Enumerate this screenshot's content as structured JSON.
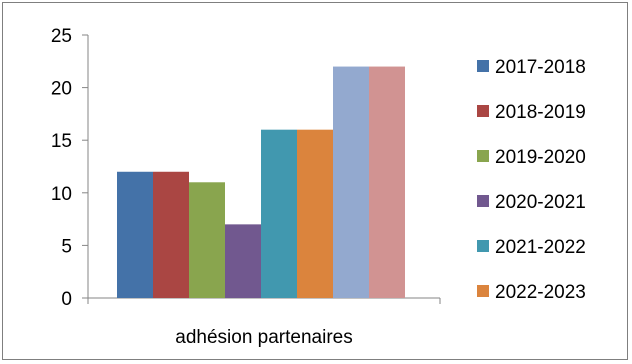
{
  "chart_data": {
    "type": "bar",
    "title": "",
    "xlabel": "",
    "ylabel": "",
    "categories": [
      "adhésion partenaires"
    ],
    "ylim": [
      0,
      25
    ],
    "yticks": [
      0,
      5,
      10,
      15,
      20,
      25
    ],
    "grid": false,
    "legend_position": "right",
    "series": [
      {
        "name": "2017-2018",
        "values": [
          12
        ],
        "color": "#4472a8"
      },
      {
        "name": "2018-2019",
        "values": [
          12
        ],
        "color": "#aa4643"
      },
      {
        "name": "2019-2020",
        "values": [
          11
        ],
        "color": "#89a54e"
      },
      {
        "name": "2020-2021",
        "values": [
          7
        ],
        "color": "#71588f"
      },
      {
        "name": "2021-2022",
        "values": [
          16
        ],
        "color": "#4198af"
      },
      {
        "name": "2022-2023",
        "values": [
          16
        ],
        "color": "#db843d"
      },
      {
        "name": "",
        "values": [
          22
        ],
        "color": "#93a9cf"
      },
      {
        "name": "",
        "values": [
          22
        ],
        "color": "#d19392"
      }
    ]
  }
}
